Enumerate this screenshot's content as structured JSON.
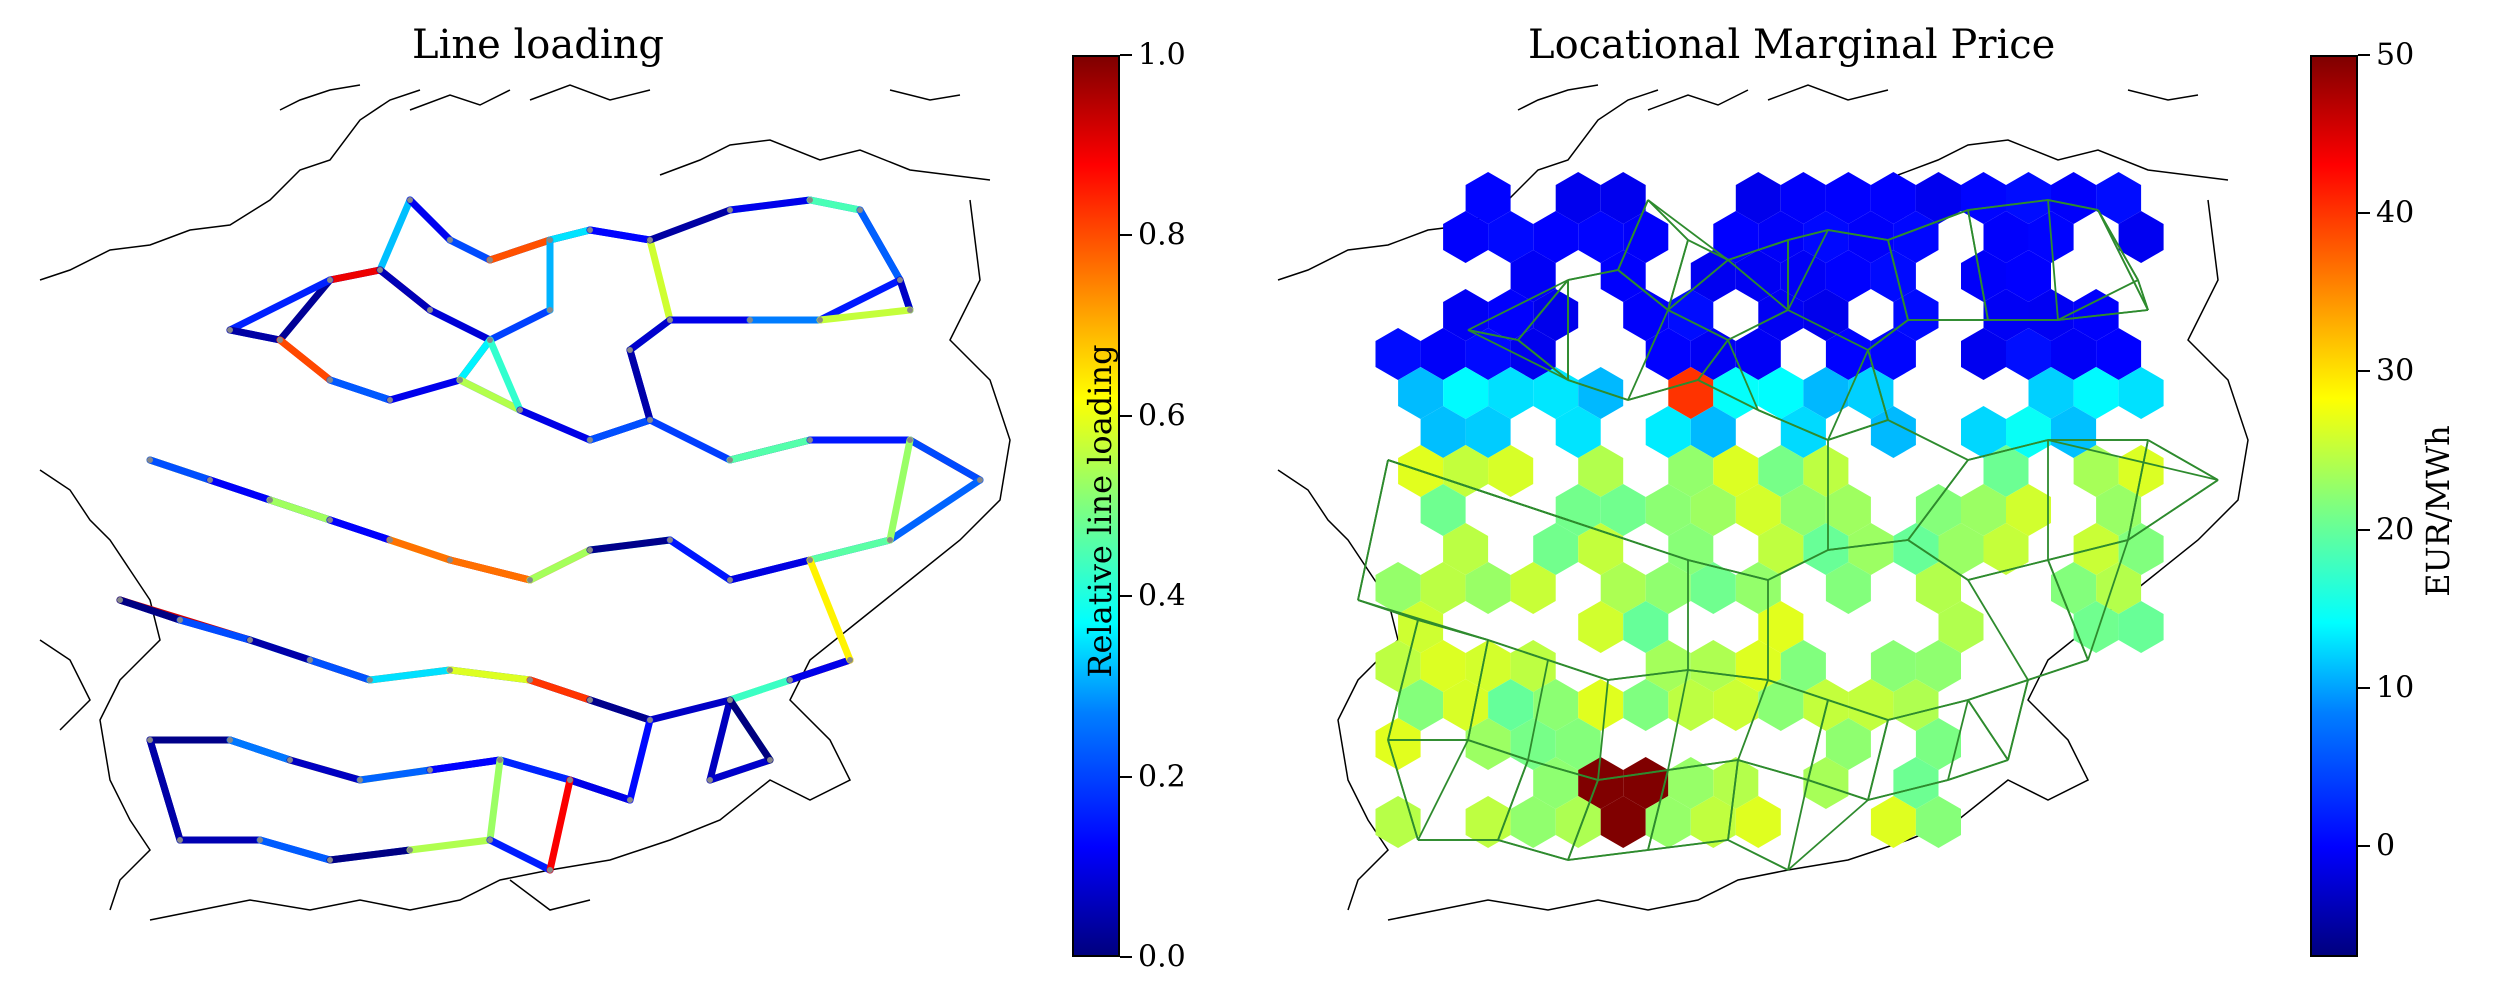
{
  "panels": {
    "left": {
      "title": "Line loading",
      "colorbar": {
        "label": "Relative line loading",
        "ticks": [
          "0.0",
          "0.2",
          "0.4",
          "0.6",
          "0.8",
          "1.0"
        ],
        "range": [
          0.0,
          1.0
        ],
        "colormap": "jet"
      }
    },
    "right": {
      "title": "Locational Marginal Price",
      "colorbar": {
        "label": "EUR/MWh",
        "ticks": [
          "0",
          "10",
          "20",
          "30",
          "40",
          "50"
        ],
        "range": [
          -7,
          50
        ],
        "colormap": "jet"
      },
      "network_line_color": "#2e8b2e"
    }
  },
  "colors": {
    "border": "#000000",
    "node": "#888888",
    "network": "#2e8b2e"
  }
}
